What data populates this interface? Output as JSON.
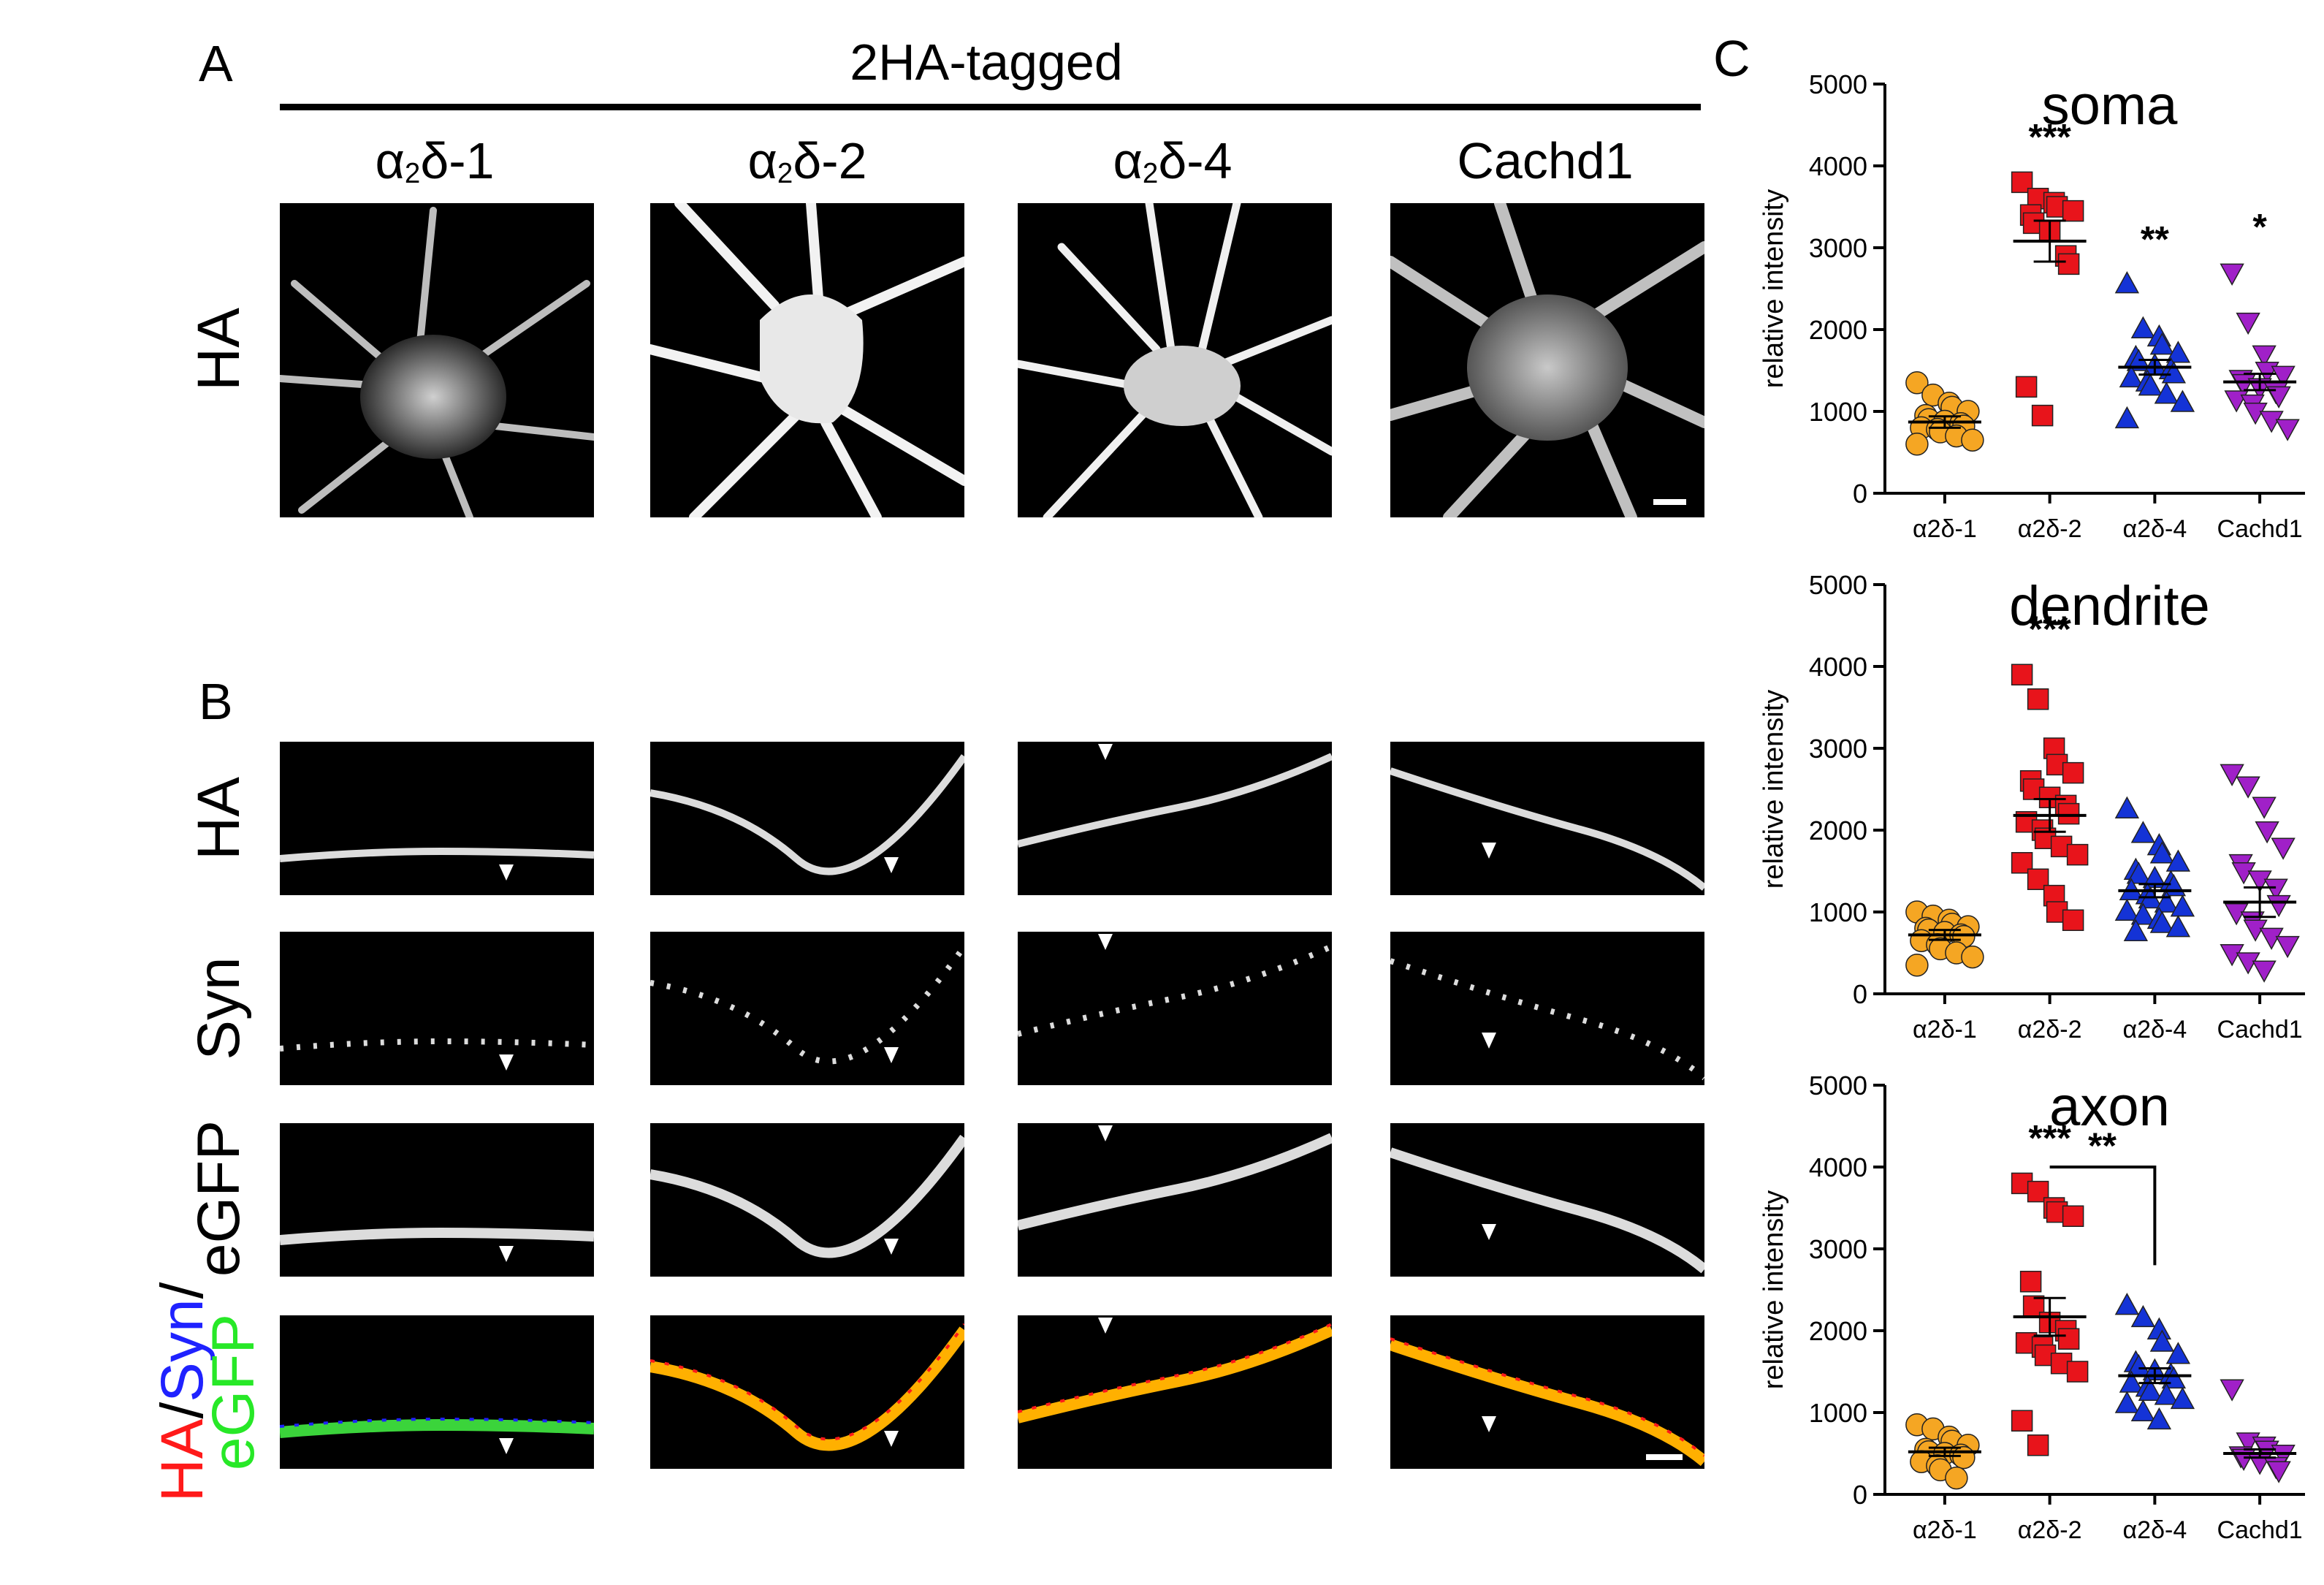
{
  "figure": {
    "panel_a": {
      "letter": "A",
      "title": "2HA-tagged",
      "row_label": "HA",
      "columns": [
        {
          "greek": "α",
          "sub": "2",
          "rest": "δ-1"
        },
        {
          "greek": "α",
          "sub": "2",
          "rest": "δ-2"
        },
        {
          "greek": "α",
          "sub": "2",
          "rest": "δ-4"
        },
        {
          "greek": "",
          "sub": "",
          "rest": "Cachd1"
        }
      ]
    },
    "panel_b": {
      "letter": "B",
      "row_labels": [
        "HA",
        "Syn",
        "eGFP"
      ],
      "merge_label": {
        "ha": "HA",
        "slash1": "/",
        "syn": "Syn",
        "slash2": "/",
        "egfp": "eGFP"
      }
    },
    "panel_c": {
      "letter": "C"
    }
  },
  "colors": {
    "alpha2delta1": "#F5A623",
    "alpha2delta2": "#E8141B",
    "alpha2delta4": "#1433D6",
    "cachd1": "#A020C8",
    "merge_ha": "#ff1a1a",
    "merge_syn": "#1f22ff",
    "merge_egfp": "#27e827"
  },
  "chart_data": [
    {
      "type": "scatter",
      "title": "soma",
      "ylabel": "relative intensity",
      "ylim": [
        0,
        5000
      ],
      "yticks": [
        0,
        1000,
        2000,
        3000,
        4000,
        5000
      ],
      "categories": [
        "α2δ-1",
        "α2δ-2",
        "α2δ-4",
        "Cachd1"
      ],
      "series": [
        {
          "category": "α2δ-1",
          "marker": "circle",
          "mean": 870,
          "sem": 70,
          "values": [
            1350,
            1200,
            1100,
            1050,
            1000,
            950,
            900,
            880,
            850,
            820,
            800,
            780,
            750,
            700,
            650,
            600
          ]
        },
        {
          "category": "α2δ-2",
          "marker": "square",
          "mean": 3080,
          "sem": 250,
          "values": [
            3800,
            3600,
            3550,
            3500,
            3450,
            3400,
            3300,
            3200,
            2900,
            2800,
            1300,
            950
          ]
        },
        {
          "category": "α2δ-4",
          "marker": "triangle-up",
          "mean": 1540,
          "sem": 90,
          "values": [
            2550,
            2000,
            1900,
            1800,
            1700,
            1650,
            1600,
            1550,
            1500,
            1450,
            1400,
            1350,
            1300,
            1200,
            1100,
            900
          ]
        },
        {
          "category": "Cachd1",
          "marker": "triangle-down",
          "mean": 1360,
          "sem": 100,
          "values": [
            2700,
            2100,
            1700,
            1500,
            1450,
            1400,
            1350,
            1300,
            1250,
            1200,
            1150,
            1100,
            1000,
            900,
            800
          ]
        }
      ],
      "significance": [
        "",
        "***",
        "**",
        "*"
      ],
      "brackets": []
    },
    {
      "type": "scatter",
      "title": "dendrite",
      "ylabel": "relative intensity",
      "ylim": [
        0,
        5000
      ],
      "yticks": [
        0,
        1000,
        2000,
        3000,
        4000,
        5000
      ],
      "categories": [
        "α2δ-1",
        "α2δ-2",
        "α2δ-4",
        "Cachd1"
      ],
      "series": [
        {
          "category": "α2δ-1",
          "marker": "circle",
          "mean": 720,
          "sem": 60,
          "values": [
            1000,
            950,
            900,
            850,
            820,
            800,
            780,
            750,
            720,
            700,
            650,
            600,
            550,
            500,
            450,
            350
          ]
        },
        {
          "category": "α2δ-2",
          "marker": "square",
          "mean": 2180,
          "sem": 200,
          "values": [
            3900,
            3600,
            3000,
            2800,
            2700,
            2600,
            2500,
            2400,
            2300,
            2200,
            2100,
            2000,
            1900,
            1800,
            1700,
            1600,
            1400,
            1200,
            1000,
            900
          ]
        },
        {
          "category": "α2δ-4",
          "marker": "triangle-up",
          "mean": 1260,
          "sem": 80,
          "values": [
            2250,
            1950,
            1800,
            1700,
            1600,
            1500,
            1450,
            1400,
            1350,
            1300,
            1250,
            1200,
            1150,
            1100,
            1050,
            1000,
            950,
            900,
            850,
            800,
            750
          ]
        },
        {
          "category": "Cachd1",
          "marker": "triangle-down",
          "mean": 1120,
          "sem": 180,
          "values": [
            2700,
            2550,
            2300,
            2000,
            1800,
            1600,
            1500,
            1400,
            1300,
            1100,
            1000,
            900,
            800,
            700,
            600,
            500,
            400,
            300
          ]
        }
      ],
      "significance": [
        "",
        "***",
        "",
        ""
      ],
      "brackets": []
    },
    {
      "type": "scatter",
      "title": "axon",
      "ylabel": "relative intensity",
      "ylim": [
        0,
        5000
      ],
      "yticks": [
        0,
        1000,
        2000,
        3000,
        4000,
        5000
      ],
      "categories": [
        "α2δ-1",
        "α2δ-2",
        "α2δ-4",
        "Cachd1"
      ],
      "series": [
        {
          "category": "α2δ-1",
          "marker": "circle",
          "mean": 520,
          "sem": 50,
          "values": [
            850,
            800,
            700,
            650,
            600,
            550,
            520,
            500,
            480,
            450,
            400,
            350,
            300,
            200
          ]
        },
        {
          "category": "α2δ-2",
          "marker": "square",
          "mean": 2170,
          "sem": 230,
          "values": [
            3800,
            3700,
            3500,
            3450,
            3400,
            2600,
            2300,
            2100,
            2000,
            1900,
            1850,
            1800,
            1700,
            1600,
            1500,
            900,
            600
          ]
        },
        {
          "category": "α2δ-4",
          "marker": "triangle-up",
          "mean": 1450,
          "sem": 90,
          "values": [
            2300,
            2150,
            2000,
            1850,
            1700,
            1600,
            1550,
            1500,
            1450,
            1400,
            1350,
            1300,
            1250,
            1200,
            1150,
            1100,
            1000,
            900
          ]
        },
        {
          "category": "Cachd1",
          "marker": "triangle-down",
          "mean": 500,
          "sem": 50,
          "values": [
            1300,
            650,
            600,
            550,
            500,
            480,
            450,
            400,
            350,
            300
          ]
        }
      ],
      "significance": [
        "",
        "***",
        "",
        ""
      ],
      "brackets": [
        {
          "from": 1,
          "to": 2,
          "label": "**"
        }
      ]
    }
  ]
}
